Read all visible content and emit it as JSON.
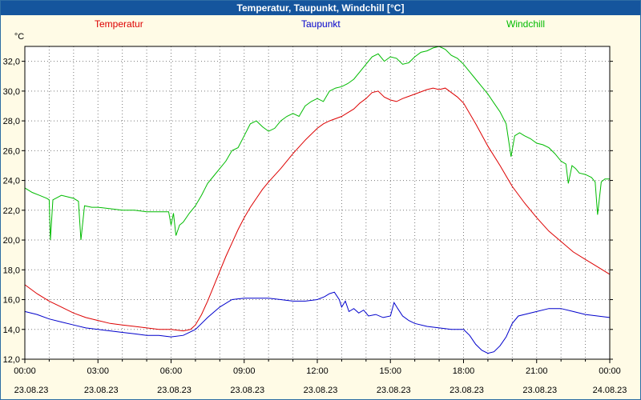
{
  "window": {
    "title": "Temperatur, Taupunkt, Windchill [°C]",
    "bar_color": "#15559d",
    "background_color": "#fffbe6"
  },
  "legend": [
    {
      "label": "Temperatur",
      "color": "#dd0000"
    },
    {
      "label": "Taupunkt",
      "color": "#0000cc"
    },
    {
      "label": "Windchill",
      "color": "#00bb00"
    }
  ],
  "chart_data": {
    "type": "line",
    "title": "Temperatur, Taupunkt, Windchill [°C]",
    "ylabel": "°C",
    "xlabel": "",
    "grid": "dotted",
    "legend_position": "top",
    "ylim": [
      12.0,
      33.0
    ],
    "xlim": [
      0,
      24
    ],
    "yticks": [
      12,
      14,
      16,
      18,
      20,
      22,
      24,
      26,
      28,
      30,
      32
    ],
    "ytick_labels": [
      "12,0",
      "14,0",
      "16,0",
      "18,0",
      "20,0",
      "22,0",
      "24,0",
      "26,0",
      "28,0",
      "30,0",
      "32,0"
    ],
    "xticks": [
      {
        "hour": 0,
        "time": "00:00",
        "date": "23.08.23"
      },
      {
        "hour": 3,
        "time": "03:00",
        "date": "23.08.23"
      },
      {
        "hour": 6,
        "time": "06:00",
        "date": "23.08.23"
      },
      {
        "hour": 9,
        "time": "09:00",
        "date": "23.08.23"
      },
      {
        "hour": 12,
        "time": "12:00",
        "date": "23.08.23"
      },
      {
        "hour": 15,
        "time": "15:00",
        "date": "23.08.23"
      },
      {
        "hour": 18,
        "time": "18:00",
        "date": "23.08.23"
      },
      {
        "hour": 21,
        "time": "21:00",
        "date": "23.08.23"
      },
      {
        "hour": 24,
        "time": "00:00",
        "date": "24.08.23"
      }
    ],
    "series": [
      {
        "name": "Temperatur",
        "color": "#dd0000",
        "points": [
          [
            0,
            17.0
          ],
          [
            0.5,
            16.4
          ],
          [
            1,
            15.9
          ],
          [
            1.5,
            15.5
          ],
          [
            2,
            15.1
          ],
          [
            2.5,
            14.8
          ],
          [
            3,
            14.6
          ],
          [
            3.5,
            14.4
          ],
          [
            4,
            14.3
          ],
          [
            4.5,
            14.2
          ],
          [
            5,
            14.1
          ],
          [
            5.5,
            14.0
          ],
          [
            6,
            14.0
          ],
          [
            6.5,
            13.9
          ],
          [
            6.8,
            14.0
          ],
          [
            7,
            14.3
          ],
          [
            7.25,
            15.0
          ],
          [
            7.5,
            15.9
          ],
          [
            7.75,
            16.9
          ],
          [
            8,
            17.9
          ],
          [
            8.25,
            18.9
          ],
          [
            8.5,
            19.8
          ],
          [
            8.75,
            20.7
          ],
          [
            9,
            21.5
          ],
          [
            9.25,
            22.2
          ],
          [
            9.5,
            22.8
          ],
          [
            9.75,
            23.4
          ],
          [
            10,
            23.9
          ],
          [
            10.5,
            24.8
          ],
          [
            11,
            25.8
          ],
          [
            11.5,
            26.7
          ],
          [
            12,
            27.5
          ],
          [
            12.25,
            27.8
          ],
          [
            12.5,
            28.0
          ],
          [
            13,
            28.3
          ],
          [
            13.5,
            28.8
          ],
          [
            13.75,
            29.2
          ],
          [
            14,
            29.5
          ],
          [
            14.25,
            29.9
          ],
          [
            14.5,
            30.0
          ],
          [
            14.75,
            29.6
          ],
          [
            15,
            29.4
          ],
          [
            15.25,
            29.3
          ],
          [
            15.5,
            29.5
          ],
          [
            16,
            29.8
          ],
          [
            16.5,
            30.1
          ],
          [
            16.75,
            30.2
          ],
          [
            17,
            30.1
          ],
          [
            17.25,
            30.2
          ],
          [
            17.5,
            29.9
          ],
          [
            17.75,
            29.6
          ],
          [
            18,
            29.2
          ],
          [
            18.5,
            27.8
          ],
          [
            19,
            26.3
          ],
          [
            19.5,
            25.0
          ],
          [
            20,
            23.6
          ],
          [
            20.5,
            22.5
          ],
          [
            21,
            21.5
          ],
          [
            21.5,
            20.6
          ],
          [
            22,
            19.9
          ],
          [
            22.5,
            19.2
          ],
          [
            23,
            18.7
          ],
          [
            23.5,
            18.2
          ],
          [
            24,
            17.7
          ]
        ]
      },
      {
        "name": "Taupunkt",
        "color": "#0000cc",
        "points": [
          [
            0,
            15.2
          ],
          [
            0.5,
            15.0
          ],
          [
            1,
            14.7
          ],
          [
            1.5,
            14.5
          ],
          [
            2,
            14.3
          ],
          [
            2.5,
            14.1
          ],
          [
            3,
            14.0
          ],
          [
            3.5,
            13.9
          ],
          [
            4,
            13.8
          ],
          [
            4.5,
            13.7
          ],
          [
            5,
            13.6
          ],
          [
            5.5,
            13.6
          ],
          [
            6,
            13.5
          ],
          [
            6.5,
            13.6
          ],
          [
            7,
            14.0
          ],
          [
            7.5,
            14.8
          ],
          [
            8,
            15.5
          ],
          [
            8.5,
            16.0
          ],
          [
            9,
            16.1
          ],
          [
            9.5,
            16.1
          ],
          [
            10,
            16.1
          ],
          [
            10.5,
            16.0
          ],
          [
            11,
            15.9
          ],
          [
            11.5,
            15.9
          ],
          [
            12,
            16.0
          ],
          [
            12.3,
            16.2
          ],
          [
            12.5,
            16.4
          ],
          [
            12.7,
            16.5
          ],
          [
            12.9,
            16.0
          ],
          [
            13,
            15.5
          ],
          [
            13.15,
            15.9
          ],
          [
            13.3,
            15.2
          ],
          [
            13.5,
            15.4
          ],
          [
            13.7,
            15.1
          ],
          [
            13.9,
            15.3
          ],
          [
            14.1,
            14.9
          ],
          [
            14.4,
            15.0
          ],
          [
            14.7,
            14.8
          ],
          [
            15,
            14.9
          ],
          [
            15.15,
            15.8
          ],
          [
            15.3,
            15.4
          ],
          [
            15.5,
            14.9
          ],
          [
            15.75,
            14.6
          ],
          [
            16,
            14.4
          ],
          [
            16.5,
            14.2
          ],
          [
            17,
            14.1
          ],
          [
            17.5,
            14.0
          ],
          [
            18,
            14.0
          ],
          [
            18.25,
            13.6
          ],
          [
            18.5,
            13.0
          ],
          [
            18.75,
            12.6
          ],
          [
            19,
            12.4
          ],
          [
            19.25,
            12.5
          ],
          [
            19.5,
            12.9
          ],
          [
            19.75,
            13.5
          ],
          [
            20,
            14.4
          ],
          [
            20.25,
            14.9
          ],
          [
            20.5,
            15.0
          ],
          [
            21,
            15.2
          ],
          [
            21.5,
            15.4
          ],
          [
            22,
            15.4
          ],
          [
            22.5,
            15.2
          ],
          [
            23,
            15.0
          ],
          [
            23.5,
            14.9
          ],
          [
            24,
            14.8
          ]
        ]
      },
      {
        "name": "Windchill",
        "color": "#00bb00",
        "points": [
          [
            0,
            23.5
          ],
          [
            0.3,
            23.2
          ],
          [
            0.6,
            23.0
          ],
          [
            0.9,
            22.8
          ],
          [
            1.0,
            22.7
          ],
          [
            1.05,
            20.0
          ],
          [
            1.15,
            22.7
          ],
          [
            1.5,
            23.0
          ],
          [
            2,
            22.8
          ],
          [
            2.2,
            22.6
          ],
          [
            2.3,
            20.0
          ],
          [
            2.45,
            22.3
          ],
          [
            2.75,
            22.2
          ],
          [
            3,
            22.2
          ],
          [
            3.5,
            22.1
          ],
          [
            4,
            22.0
          ],
          [
            4.5,
            22.0
          ],
          [
            5,
            21.9
          ],
          [
            5.5,
            21.9
          ],
          [
            5.9,
            21.9
          ],
          [
            6.0,
            21.0
          ],
          [
            6.1,
            21.8
          ],
          [
            6.2,
            20.3
          ],
          [
            6.35,
            21.0
          ],
          [
            6.5,
            21.2
          ],
          [
            6.75,
            21.8
          ],
          [
            7,
            22.3
          ],
          [
            7.25,
            23.0
          ],
          [
            7.5,
            23.8
          ],
          [
            7.75,
            24.3
          ],
          [
            8,
            24.8
          ],
          [
            8.25,
            25.3
          ],
          [
            8.5,
            26.0
          ],
          [
            8.75,
            26.2
          ],
          [
            9,
            27.0
          ],
          [
            9.25,
            27.8
          ],
          [
            9.5,
            28.0
          ],
          [
            9.75,
            27.6
          ],
          [
            10,
            27.3
          ],
          [
            10.25,
            27.5
          ],
          [
            10.5,
            28.0
          ],
          [
            10.75,
            28.3
          ],
          [
            11,
            28.5
          ],
          [
            11.25,
            28.3
          ],
          [
            11.5,
            29.0
          ],
          [
            11.75,
            29.3
          ],
          [
            12,
            29.5
          ],
          [
            12.25,
            29.3
          ],
          [
            12.5,
            30.0
          ],
          [
            12.75,
            30.2
          ],
          [
            13,
            30.3
          ],
          [
            13.25,
            30.5
          ],
          [
            13.5,
            30.8
          ],
          [
            13.75,
            31.3
          ],
          [
            14,
            31.8
          ],
          [
            14.25,
            32.3
          ],
          [
            14.5,
            32.5
          ],
          [
            14.75,
            32.0
          ],
          [
            15,
            32.3
          ],
          [
            15.25,
            32.2
          ],
          [
            15.5,
            31.8
          ],
          [
            15.75,
            31.9
          ],
          [
            16,
            32.3
          ],
          [
            16.25,
            32.6
          ],
          [
            16.5,
            32.7
          ],
          [
            16.75,
            32.9
          ],
          [
            17,
            33.0
          ],
          [
            17.25,
            32.8
          ],
          [
            17.5,
            32.4
          ],
          [
            17.75,
            32.2
          ],
          [
            18,
            31.8
          ],
          [
            18.25,
            31.3
          ],
          [
            18.5,
            30.8
          ],
          [
            18.75,
            30.3
          ],
          [
            19,
            29.8
          ],
          [
            19.25,
            29.2
          ],
          [
            19.5,
            28.6
          ],
          [
            19.75,
            27.8
          ],
          [
            19.95,
            25.6
          ],
          [
            20.1,
            27.0
          ],
          [
            20.3,
            27.2
          ],
          [
            20.5,
            27.0
          ],
          [
            20.75,
            26.8
          ],
          [
            21,
            26.5
          ],
          [
            21.25,
            26.4
          ],
          [
            21.5,
            26.2
          ],
          [
            21.75,
            25.8
          ],
          [
            22,
            25.3
          ],
          [
            22.2,
            25.1
          ],
          [
            22.3,
            23.8
          ],
          [
            22.45,
            25.0
          ],
          [
            22.6,
            24.8
          ],
          [
            22.75,
            24.5
          ],
          [
            23,
            24.4
          ],
          [
            23.25,
            24.2
          ],
          [
            23.4,
            23.9
          ],
          [
            23.5,
            21.7
          ],
          [
            23.65,
            23.9
          ],
          [
            23.8,
            24.1
          ],
          [
            24,
            24.1
          ]
        ]
      }
    ]
  }
}
